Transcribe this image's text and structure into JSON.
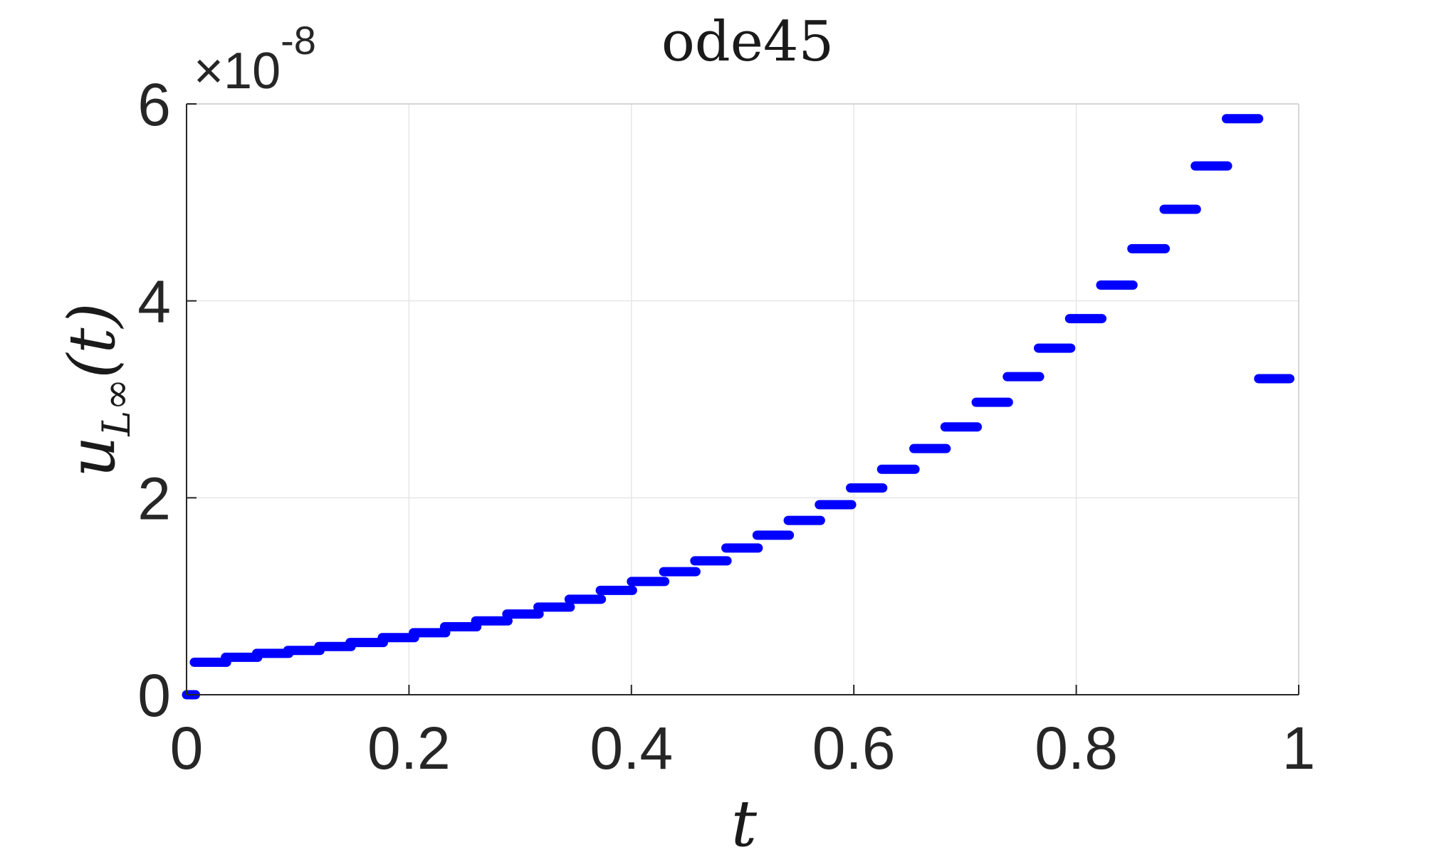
{
  "chart_data": {
    "type": "line",
    "title": "ode45",
    "xlabel": "t",
    "ylabel": {
      "base": "u",
      "subscript": "L∞",
      "argument": "(t)"
    },
    "xlim": [
      0,
      1
    ],
    "ylim": [
      0,
      6
    ],
    "y_exponent_label": "×10",
    "y_exponent_power": "-8",
    "xticks": [
      "0",
      "0.2",
      "0.4",
      "0.6",
      "0.8",
      "1"
    ],
    "xtick_values": [
      0,
      0.2,
      0.4,
      0.6,
      0.8,
      1
    ],
    "yticks": [
      "0",
      "2",
      "4",
      "6"
    ],
    "ytick_values": [
      0,
      2,
      4,
      6
    ],
    "grid": true,
    "series": [
      {
        "color": "#0000ff",
        "style": "step segments",
        "segments": [
          {
            "x0": 0.0,
            "x1": 0.008,
            "y": 0.0
          },
          {
            "x0": 0.007,
            "x1": 0.036,
            "y": 0.33
          },
          {
            "x0": 0.035,
            "x1": 0.064,
            "y": 0.38
          },
          {
            "x0": 0.063,
            "x1": 0.092,
            "y": 0.42
          },
          {
            "x0": 0.091,
            "x1": 0.12,
            "y": 0.45
          },
          {
            "x0": 0.119,
            "x1": 0.148,
            "y": 0.49
          },
          {
            "x0": 0.147,
            "x1": 0.177,
            "y": 0.53
          },
          {
            "x0": 0.176,
            "x1": 0.205,
            "y": 0.58
          },
          {
            "x0": 0.204,
            "x1": 0.233,
            "y": 0.63
          },
          {
            "x0": 0.232,
            "x1": 0.261,
            "y": 0.69
          },
          {
            "x0": 0.26,
            "x1": 0.289,
            "y": 0.75
          },
          {
            "x0": 0.288,
            "x1": 0.317,
            "y": 0.82
          },
          {
            "x0": 0.316,
            "x1": 0.345,
            "y": 0.89
          },
          {
            "x0": 0.344,
            "x1": 0.373,
            "y": 0.97
          },
          {
            "x0": 0.372,
            "x1": 0.401,
            "y": 1.06
          },
          {
            "x0": 0.4,
            "x1": 0.43,
            "y": 1.15
          },
          {
            "x0": 0.429,
            "x1": 0.458,
            "y": 1.25
          },
          {
            "x0": 0.457,
            "x1": 0.486,
            "y": 1.36
          },
          {
            "x0": 0.485,
            "x1": 0.514,
            "y": 1.49
          },
          {
            "x0": 0.513,
            "x1": 0.542,
            "y": 1.62
          },
          {
            "x0": 0.541,
            "x1": 0.57,
            "y": 1.77
          },
          {
            "x0": 0.569,
            "x1": 0.598,
            "y": 1.93
          },
          {
            "x0": 0.597,
            "x1": 0.626,
            "y": 2.1
          },
          {
            "x0": 0.625,
            "x1": 0.655,
            "y": 2.29
          },
          {
            "x0": 0.654,
            "x1": 0.683,
            "y": 2.5
          },
          {
            "x0": 0.682,
            "x1": 0.711,
            "y": 2.72
          },
          {
            "x0": 0.71,
            "x1": 0.739,
            "y": 2.97
          },
          {
            "x0": 0.738,
            "x1": 0.767,
            "y": 3.23
          },
          {
            "x0": 0.766,
            "x1": 0.795,
            "y": 3.52
          },
          {
            "x0": 0.794,
            "x1": 0.823,
            "y": 3.82
          },
          {
            "x0": 0.822,
            "x1": 0.851,
            "y": 4.16
          },
          {
            "x0": 0.85,
            "x1": 0.88,
            "y": 4.53
          },
          {
            "x0": 0.879,
            "x1": 0.908,
            "y": 4.93
          },
          {
            "x0": 0.907,
            "x1": 0.936,
            "y": 5.37
          },
          {
            "x0": 0.935,
            "x1": 0.964,
            "y": 5.85
          },
          {
            "x0": 0.964,
            "x1": 0.992,
            "y": 3.21
          }
        ]
      }
    ]
  }
}
